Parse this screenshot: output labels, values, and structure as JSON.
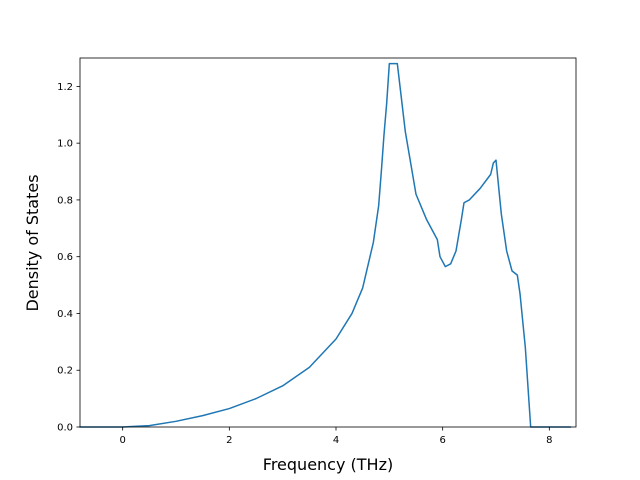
{
  "chart_data": {
    "type": "line",
    "title": "",
    "xlabel": "Frequency (THz)",
    "ylabel": "Density of States",
    "xlim": [
      -0.8,
      8.5
    ],
    "ylim": [
      0.0,
      1.3
    ],
    "x_ticks": [
      0,
      2,
      4,
      6,
      8
    ],
    "y_ticks": [
      0.0,
      0.2,
      0.4,
      0.6,
      0.8,
      1.0,
      1.2
    ],
    "x_tick_labels": [
      "0",
      "2",
      "4",
      "6",
      "8"
    ],
    "y_tick_labels": [
      "0.0",
      "0.2",
      "0.4",
      "0.6",
      "0.8",
      "1.0",
      "1.2"
    ],
    "grid": false,
    "line_color": "#1f77b4",
    "series": [
      {
        "x": [
          -0.8,
          0.0,
          0.5,
          1.0,
          1.5,
          2.0,
          2.5,
          3.0,
          3.5,
          4.0,
          4.3,
          4.5,
          4.7,
          4.8,
          4.85,
          4.9,
          4.95,
          5.0,
          5.1,
          5.15,
          5.2,
          5.3,
          5.5,
          5.7,
          5.9,
          5.95,
          6.05,
          6.15,
          6.25,
          6.35,
          6.4,
          6.5,
          6.7,
          6.9,
          6.95,
          7.0,
          7.1,
          7.2,
          7.3,
          7.4,
          7.45,
          7.55,
          7.65,
          7.67,
          8.0,
          8.4
        ],
        "y": [
          0.0,
          0.0,
          0.005,
          0.02,
          0.04,
          0.065,
          0.1,
          0.145,
          0.21,
          0.31,
          0.4,
          0.49,
          0.65,
          0.78,
          0.9,
          1.03,
          1.14,
          1.28,
          1.28,
          1.28,
          1.2,
          1.04,
          0.82,
          0.73,
          0.66,
          0.6,
          0.565,
          0.575,
          0.62,
          0.73,
          0.79,
          0.8,
          0.84,
          0.89,
          0.93,
          0.94,
          0.75,
          0.62,
          0.55,
          0.535,
          0.47,
          0.28,
          0.0,
          0.0,
          0.0,
          0.0
        ]
      }
    ]
  }
}
